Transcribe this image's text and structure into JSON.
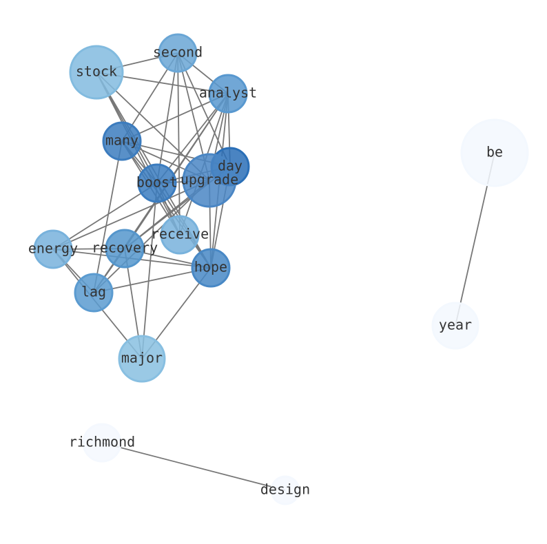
{
  "nodes": [
    {
      "label": "stock"
    },
    {
      "label": "second"
    },
    {
      "label": "analyst"
    },
    {
      "label": "many"
    },
    {
      "label": "day"
    },
    {
      "label": "upgrade"
    },
    {
      "label": "boost"
    },
    {
      "label": "receive"
    },
    {
      "label": "energy"
    },
    {
      "label": "recovery"
    },
    {
      "label": "hope"
    },
    {
      "label": "lag"
    },
    {
      "label": "major"
    },
    {
      "label": "be"
    },
    {
      "label": "year"
    },
    {
      "label": "richmond"
    },
    {
      "label": "design"
    }
  ]
}
